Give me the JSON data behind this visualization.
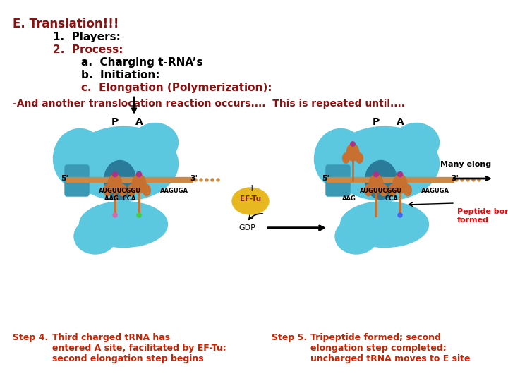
{
  "bg_color": "#ffffff",
  "red_color": "#8B1010",
  "black": "#000000",
  "orange_red": "#CC2200",
  "title_line": "E. Translation!!!",
  "line1": "      1.  Players:",
  "line2": "      2.  Process:",
  "line3": "            a.  Charging t-RNA’s",
  "line4": "            b.  Initiation:",
  "line5": "            c.  Elongation (Polymerization):",
  "subtitle": "-And another translocation reaction occurs....  This is repeated until....",
  "step4_bold": "Step 4.",
  "step4_text": " Third charged tRNA has\nentered A site, facilitated by EF-Tu;\nsecond elongation step begins",
  "step5_bold": "Step 5.",
  "step5_text": " Tripeptide formed; second\nelongation step completed;\nuncharged tRNA moves to E site",
  "cyan": "#5BC8E0",
  "dark_cyan": "#3A9AB5",
  "teal_dark": "#2A7A9A",
  "orange": "#D4873A",
  "gold": "#E8B820",
  "mrna_color": "#CC8844"
}
